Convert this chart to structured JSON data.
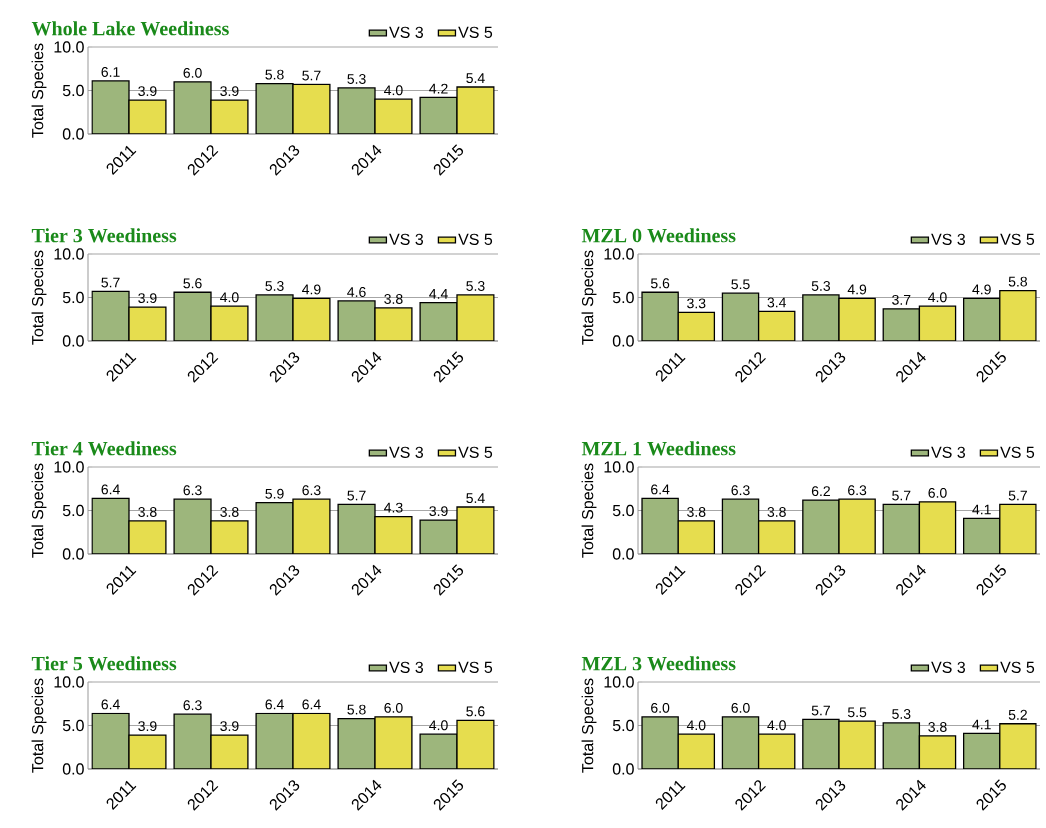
{
  "chart_data": [
    {
      "type": "bar",
      "title": "Whole Lake Weediness",
      "ylabel": "Total Species",
      "categories": [
        "2011",
        "2012",
        "2013",
        "2014",
        "2015"
      ],
      "series": [
        {
          "name": "VS 3",
          "color": "#9db67c",
          "values": [
            6.1,
            6.0,
            5.8,
            5.3,
            4.2
          ],
          "value_labels": [
            "6.1",
            "6.0",
            "5.8",
            "5.3",
            "4.2"
          ]
        },
        {
          "name": "VS 5",
          "color": "#e6dd4e",
          "values": [
            3.9,
            3.9,
            5.7,
            4.0,
            5.4
          ],
          "value_labels": [
            "3.9",
            "3.9",
            "5.7",
            "4.0",
            "5.4"
          ]
        }
      ],
      "ylim": [
        0,
        10
      ],
      "yticks": [
        {
          "value": 0,
          "label": "0.0"
        },
        {
          "value": 5,
          "label": "5.0"
        },
        {
          "value": 10,
          "label": "10.0"
        }
      ],
      "grid": "y",
      "legend": "top right"
    },
    {
      "type": "bar",
      "title": "Tier 3 Weediness",
      "ylabel": "Total Species",
      "categories": [
        "2011",
        "2012",
        "2013",
        "2014",
        "2015"
      ],
      "series": [
        {
          "name": "VS 3",
          "color": "#9db67c",
          "values": [
            5.7,
            5.6,
            5.3,
            4.6,
            4.4
          ],
          "value_labels": [
            "5.7",
            "5.6",
            "5.3",
            "4.6",
            "4.4"
          ]
        },
        {
          "name": "VS 5",
          "color": "#e6dd4e",
          "values": [
            3.9,
            4.0,
            4.9,
            3.8,
            5.3
          ],
          "value_labels": [
            "3.9",
            "4.0",
            "4.9",
            "3.8",
            "5.3"
          ]
        }
      ],
      "ylim": [
        0,
        10
      ],
      "yticks": [
        {
          "value": 0,
          "label": "0.0"
        },
        {
          "value": 5,
          "label": "5.0"
        },
        {
          "value": 10,
          "label": "10.0"
        }
      ],
      "grid": "y",
      "legend": "top right"
    },
    {
      "type": "bar",
      "title": "MZL 0 Weediness",
      "ylabel": "Total Species",
      "categories": [
        "2011",
        "2012",
        "2013",
        "2014",
        "2015"
      ],
      "series": [
        {
          "name": "VS 3",
          "color": "#9db67c",
          "values": [
            5.6,
            5.5,
            5.3,
            3.7,
            4.9
          ],
          "value_labels": [
            "5.6",
            "5.5",
            "5.3",
            "3.7",
            "4.9"
          ]
        },
        {
          "name": "VS 5",
          "color": "#e6dd4e",
          "values": [
            3.3,
            3.4,
            4.9,
            4.0,
            5.8
          ],
          "value_labels": [
            "3.3",
            "3.4",
            "4.9",
            "4.0",
            "5.8"
          ]
        }
      ],
      "ylim": [
        0,
        10
      ],
      "yticks": [
        {
          "value": 0,
          "label": "0.0"
        },
        {
          "value": 5,
          "label": "5.0"
        },
        {
          "value": 10,
          "label": "10.0"
        }
      ],
      "grid": "y",
      "legend": "top right"
    },
    {
      "type": "bar",
      "title": "Tier 4 Weediness",
      "ylabel": "Total Species",
      "categories": [
        "2011",
        "2012",
        "2013",
        "2014",
        "2015"
      ],
      "series": [
        {
          "name": "VS 3",
          "color": "#9db67c",
          "values": [
            6.4,
            6.3,
            5.9,
            5.7,
            3.9
          ],
          "value_labels": [
            "6.4",
            "6.3",
            "5.9",
            "5.7",
            "3.9"
          ]
        },
        {
          "name": "VS 5",
          "color": "#e6dd4e",
          "values": [
            3.8,
            3.8,
            6.3,
            4.3,
            5.4
          ],
          "value_labels": [
            "3.8",
            "3.8",
            "6.3",
            "4.3",
            "5.4"
          ]
        }
      ],
      "ylim": [
        0,
        10
      ],
      "yticks": [
        {
          "value": 0,
          "label": "0.0"
        },
        {
          "value": 5,
          "label": "5.0"
        },
        {
          "value": 10,
          "label": "10.0"
        }
      ],
      "grid": "y",
      "legend": "top right"
    },
    {
      "type": "bar",
      "title": "MZL 1 Weediness",
      "ylabel": "Total Species",
      "categories": [
        "2011",
        "2012",
        "2013",
        "2014",
        "2015"
      ],
      "series": [
        {
          "name": "VS 3",
          "color": "#9db67c",
          "values": [
            6.4,
            6.3,
            6.2,
            5.7,
            4.1
          ],
          "value_labels": [
            "6.4",
            "6.3",
            "6.2",
            "5.7",
            "4.1"
          ]
        },
        {
          "name": "VS 5",
          "color": "#e6dd4e",
          "values": [
            3.8,
            3.8,
            6.3,
            6.0,
            5.7
          ],
          "value_labels": [
            "3.8",
            "3.8",
            "6.3",
            "6.0",
            "5.7"
          ]
        }
      ],
      "ylim": [
        0,
        10
      ],
      "yticks": [
        {
          "value": 0,
          "label": "0.0"
        },
        {
          "value": 5,
          "label": "5.0"
        },
        {
          "value": 10,
          "label": "10.0"
        }
      ],
      "grid": "y",
      "legend": "top right"
    },
    {
      "type": "bar",
      "title": "Tier 5 Weediness",
      "ylabel": "Total Species",
      "categories": [
        "2011",
        "2012",
        "2013",
        "2014",
        "2015"
      ],
      "series": [
        {
          "name": "VS 3",
          "color": "#9db67c",
          "values": [
            6.4,
            6.3,
            6.4,
            5.8,
            4.0
          ],
          "value_labels": [
            "6.4",
            "6.3",
            "6.4",
            "5.8",
            "4.0"
          ]
        },
        {
          "name": "VS 5",
          "color": "#e6dd4e",
          "values": [
            3.9,
            3.9,
            6.4,
            6.0,
            5.6
          ],
          "value_labels": [
            "3.9",
            "3.9",
            "6.4",
            "6.0",
            "5.6"
          ]
        }
      ],
      "ylim": [
        0,
        10
      ],
      "yticks": [
        {
          "value": 0,
          "label": "0.0"
        },
        {
          "value": 5,
          "label": "5.0"
        },
        {
          "value": 10,
          "label": "10.0"
        }
      ],
      "grid": "y",
      "legend": "top right"
    },
    {
      "type": "bar",
      "title": "MZL 3 Weediness",
      "ylabel": "Total Species",
      "categories": [
        "2011",
        "2012",
        "2013",
        "2014",
        "2015"
      ],
      "series": [
        {
          "name": "VS 3",
          "color": "#9db67c",
          "values": [
            6.0,
            6.0,
            5.7,
            5.3,
            4.1
          ],
          "value_labels": [
            "6.0",
            "6.0",
            "5.7",
            "5.3",
            "4.1"
          ]
        },
        {
          "name": "VS 5",
          "color": "#e6dd4e",
          "values": [
            4.0,
            4.0,
            5.5,
            3.8,
            5.2
          ],
          "value_labels": [
            "4.0",
            "4.0",
            "5.5",
            "3.8",
            "5.2"
          ]
        }
      ],
      "ylim": [
        0,
        10
      ],
      "yticks": [
        {
          "value": 0,
          "label": "0.0"
        },
        {
          "value": 5,
          "label": "5.0"
        },
        {
          "value": 10,
          "label": "10.0"
        }
      ],
      "grid": "y",
      "legend": "top right"
    }
  ]
}
